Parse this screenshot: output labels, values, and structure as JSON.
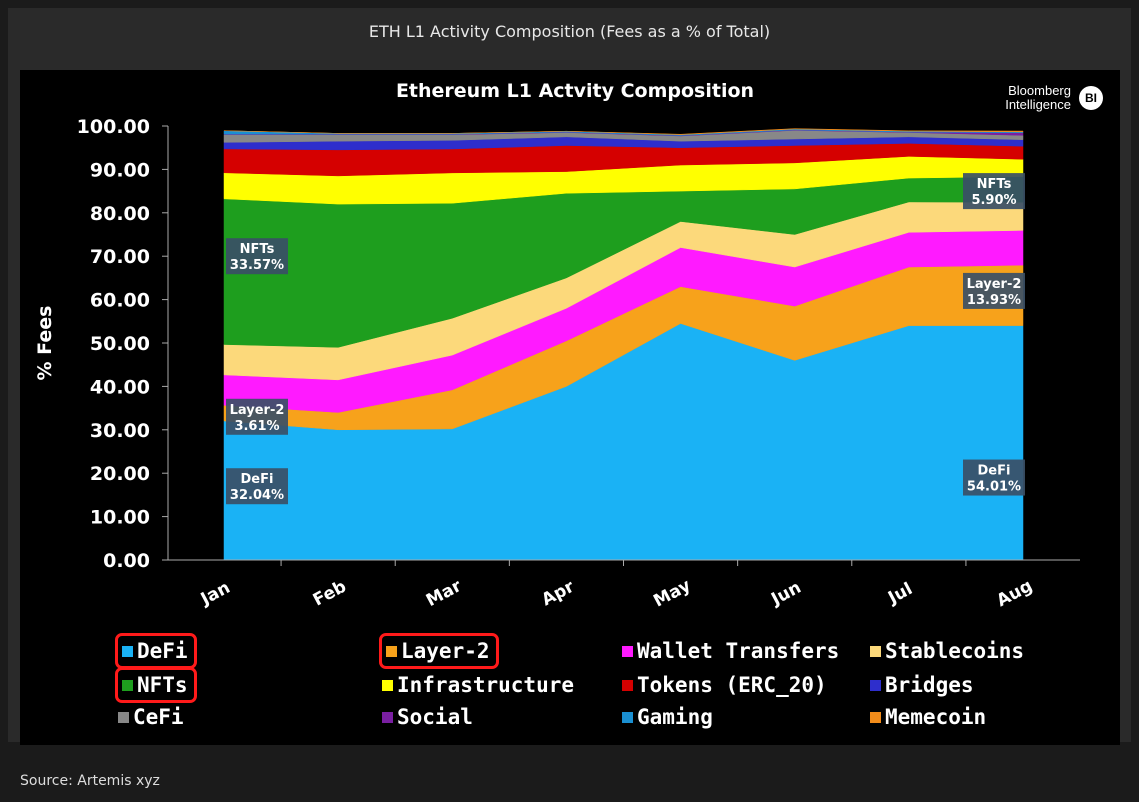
{
  "header": {
    "title": "ETH L1 Activity Composition (Fees as a % of Total)"
  },
  "footer": {
    "source": "Source: Artemis xyz"
  },
  "brand": {
    "line1": "Bloomberg",
    "line2": "Intelligence",
    "badge": "BI"
  },
  "chart_data": {
    "type": "area",
    "stacked": true,
    "title": "Ethereum L1 Actvity Composition",
    "ylabel": "% Fees",
    "xlabel": "",
    "ylim": [
      0,
      100
    ],
    "yticks": [
      "0.00",
      "10.00",
      "20.00",
      "30.00",
      "40.00",
      "50.00",
      "60.00",
      "70.00",
      "80.00",
      "90.00",
      "100.00"
    ],
    "categories": [
      "Jan",
      "Feb",
      "Mar",
      "Apr",
      "May",
      "Jun",
      "Jul",
      "Aug"
    ],
    "grid": false,
    "legend_position": "bottom",
    "series": [
      {
        "name": "DeFi",
        "color": "#1ab2f5",
        "values": [
          32.04,
          30.0,
          30.2,
          40.0,
          54.5,
          46.0,
          54.0,
          54.01
        ]
      },
      {
        "name": "Layer-2",
        "color": "#f7a21b",
        "values": [
          3.61,
          4.0,
          9.0,
          10.5,
          8.5,
          12.5,
          13.5,
          13.93
        ]
      },
      {
        "name": "Wallet Transfers",
        "color": "#ff1aff",
        "values": [
          7.0,
          7.5,
          8.0,
          7.5,
          9.0,
          9.0,
          8.0,
          8.0
        ]
      },
      {
        "name": "Stablecoins",
        "color": "#fcd97b",
        "values": [
          7.0,
          7.5,
          8.5,
          7.0,
          6.0,
          7.5,
          7.0,
          6.5
        ]
      },
      {
        "name": "NFTs",
        "color": "#1e9e1e",
        "values": [
          33.57,
          33.0,
          26.5,
          19.5,
          7.0,
          10.5,
          5.5,
          5.9
        ]
      },
      {
        "name": "Infrastructure",
        "color": "#ffff00",
        "values": [
          6.0,
          6.5,
          7.0,
          5.0,
          6.0,
          6.0,
          5.0,
          4.0
        ]
      },
      {
        "name": "Tokens (ERC_20)",
        "color": "#d50000",
        "values": [
          5.5,
          6.0,
          5.5,
          6.0,
          4.0,
          4.0,
          3.0,
          3.0
        ]
      },
      {
        "name": "Bridges",
        "color": "#2e2ecc",
        "values": [
          1.5,
          2.0,
          2.0,
          2.0,
          1.5,
          1.5,
          1.5,
          1.5
        ]
      },
      {
        "name": "CeFi",
        "color": "#888888",
        "values": [
          1.8,
          1.5,
          1.3,
          1.0,
          1.2,
          2.0,
          1.0,
          1.0
        ]
      },
      {
        "name": "Social",
        "color": "#7a1fa2",
        "values": [
          0.1,
          0.1,
          0.1,
          0.1,
          0.1,
          0.1,
          0.1,
          0.6
        ]
      },
      {
        "name": "Gaming",
        "color": "#1a8fd1",
        "values": [
          0.8,
          0.2,
          0.2,
          0.2,
          0.2,
          0.2,
          0.2,
          0.2
        ]
      },
      {
        "name": "Memecoin",
        "color": "#f28c1a",
        "values": [
          0.0,
          0.0,
          0.0,
          0.0,
          0.1,
          0.1,
          0.1,
          0.2
        ]
      }
    ],
    "annotations": [
      {
        "label": "NFTs",
        "value": "33.57%",
        "category": "Jan",
        "y": 70
      },
      {
        "label": "Layer-2",
        "value": "3.61%",
        "category": "Jan",
        "y": 33
      },
      {
        "label": "DeFi",
        "value": "32.04%",
        "category": "Jan",
        "y": 17
      },
      {
        "label": "NFTs",
        "value": "5.90%",
        "category": "Aug",
        "y": 85
      },
      {
        "label": "Layer-2",
        "value": "13.93%",
        "category": "Aug",
        "y": 62
      },
      {
        "label": "DeFi",
        "value": "54.01%",
        "category": "Aug",
        "y": 19
      }
    ],
    "highlighted_legend": [
      "DeFi",
      "Layer-2",
      "NFTs"
    ]
  }
}
